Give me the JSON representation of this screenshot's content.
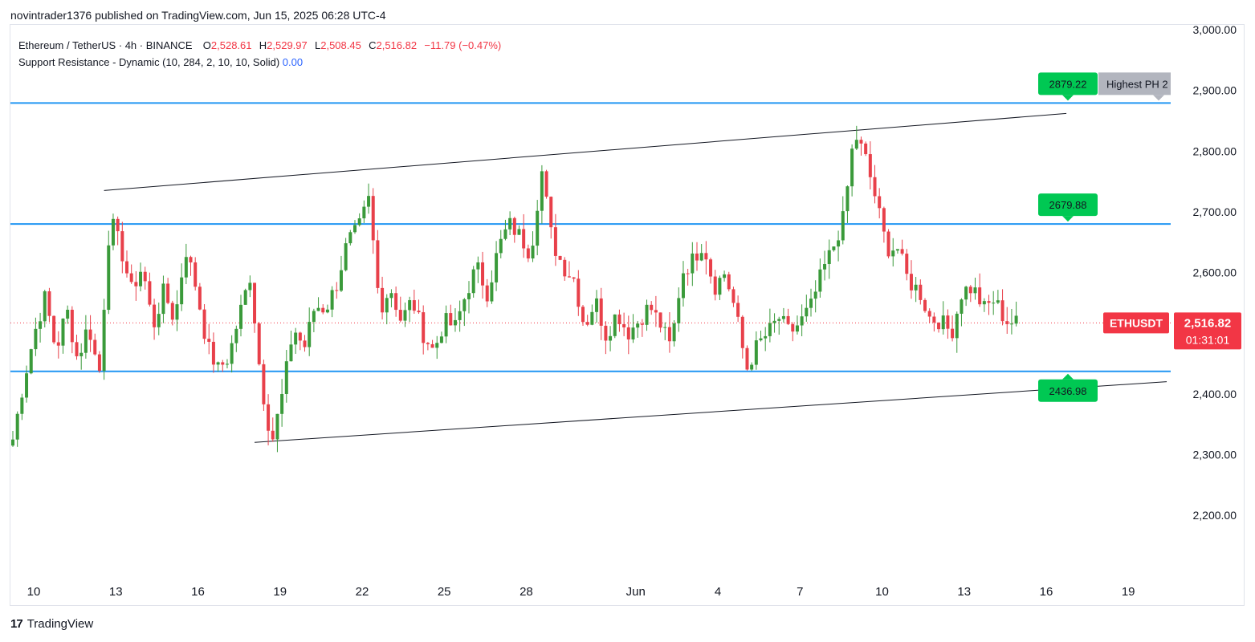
{
  "header": {
    "published": "novintrader1376 published on TradingView.com, Jun 15, 2025 06:28 UTC-4"
  },
  "legend": {
    "symbol": "Ethereum / TetherUS · 4h · BINANCE",
    "o_label": "O",
    "o_val": "2,528.61",
    "h_label": "H",
    "h_val": "2,529.97",
    "l_label": "L",
    "l_val": "2,508.45",
    "c_label": "C",
    "c_val": "2,516.82",
    "change": "−11.79 (−0.47%)",
    "indicator": "Support Resistance - Dynamic (10, 284, 2, 10, 10, Solid)",
    "indicator_val": "0.00"
  },
  "footer": {
    "brand": "TradingView",
    "logo": "17"
  },
  "colors": {
    "up": "#26a69a",
    "candle_up": "#3a9a3a",
    "candle_down": "#e8404a",
    "level": "#2196f3",
    "tag_green": "#00c853",
    "tag_gray": "#b2b5be",
    "price_red": "#f23645"
  },
  "chart_data": {
    "type": "candlestick",
    "symbol": "ETHUSDT",
    "interval": "4h",
    "ylim": [
      2100,
      3000
    ],
    "y_ticks": [
      "3,000.00",
      "2,900.00",
      "2,800.00",
      "2,700.00",
      "2,600.00",
      "2,500.00",
      "2,400.00",
      "2,300.00",
      "2,200.00"
    ],
    "y_tick_values": [
      3000,
      2900,
      2800,
      2700,
      2600,
      2500,
      2400,
      2300,
      2200
    ],
    "x_ticks": [
      "10",
      "13",
      "16",
      "19",
      "22",
      "25",
      "28",
      "Jun",
      "4",
      "7",
      "10",
      "13",
      "16",
      "19"
    ],
    "x_tick_bar_index": [
      0,
      18,
      36,
      54,
      72,
      90,
      108,
      132,
      150,
      168,
      186,
      204,
      222,
      240
    ],
    "last_price": {
      "label": "ETHUSDT",
      "value": 2516.82,
      "value_label": "2,516.82",
      "countdown": "01:31:01"
    },
    "levels": [
      {
        "value": 2879.22,
        "label": "2879.22",
        "note": "Highest PH 2"
      },
      {
        "value": 2679.88,
        "label": "2679.88"
      },
      {
        "value": 2436.98,
        "label": "2436.98"
      }
    ],
    "trendlines": [
      {
        "from": {
          "bar": 20,
          "price": 2735
        },
        "to": {
          "bar": 231,
          "price": 2862
        }
      },
      {
        "from": {
          "bar": 53,
          "price": 2320
        },
        "to": {
          "bar": 253,
          "price": 2420
        }
      }
    ],
    "ohlc_close_path": [
      2325,
      2420,
      2500,
      2560,
      2470,
      2540,
      2455,
      2515,
      2430,
      2690,
      2640,
      2570,
      2610,
      2510,
      2570,
      2520,
      2640,
      2575,
      2480,
      2440,
      2460,
      2530,
      2595,
      2420,
      2320,
      2400,
      2510,
      2475,
      2545,
      2540,
      2580,
      2650,
      2670,
      2720,
      2540,
      2575,
      2520,
      2555,
      2500,
      2470,
      2520,
      2510,
      2565,
      2610,
      2565,
      2640,
      2680,
      2660,
      2630,
      2770,
      2650,
      2610,
      2590,
      2510,
      2555,
      2495,
      2535,
      2500,
      2520,
      2545,
      2515,
      2475,
      2600,
      2620,
      2650,
      2575,
      2600,
      2535,
      2440,
      2480,
      2500,
      2525,
      2500,
      2518,
      2545,
      2600,
      2640,
      2690,
      2830,
      2790,
      2720,
      2640,
      2640,
      2585,
      2570,
      2525,
      2520,
      2500,
      2570,
      2575,
      2540,
      2555,
      2520,
      2516.82
    ]
  }
}
